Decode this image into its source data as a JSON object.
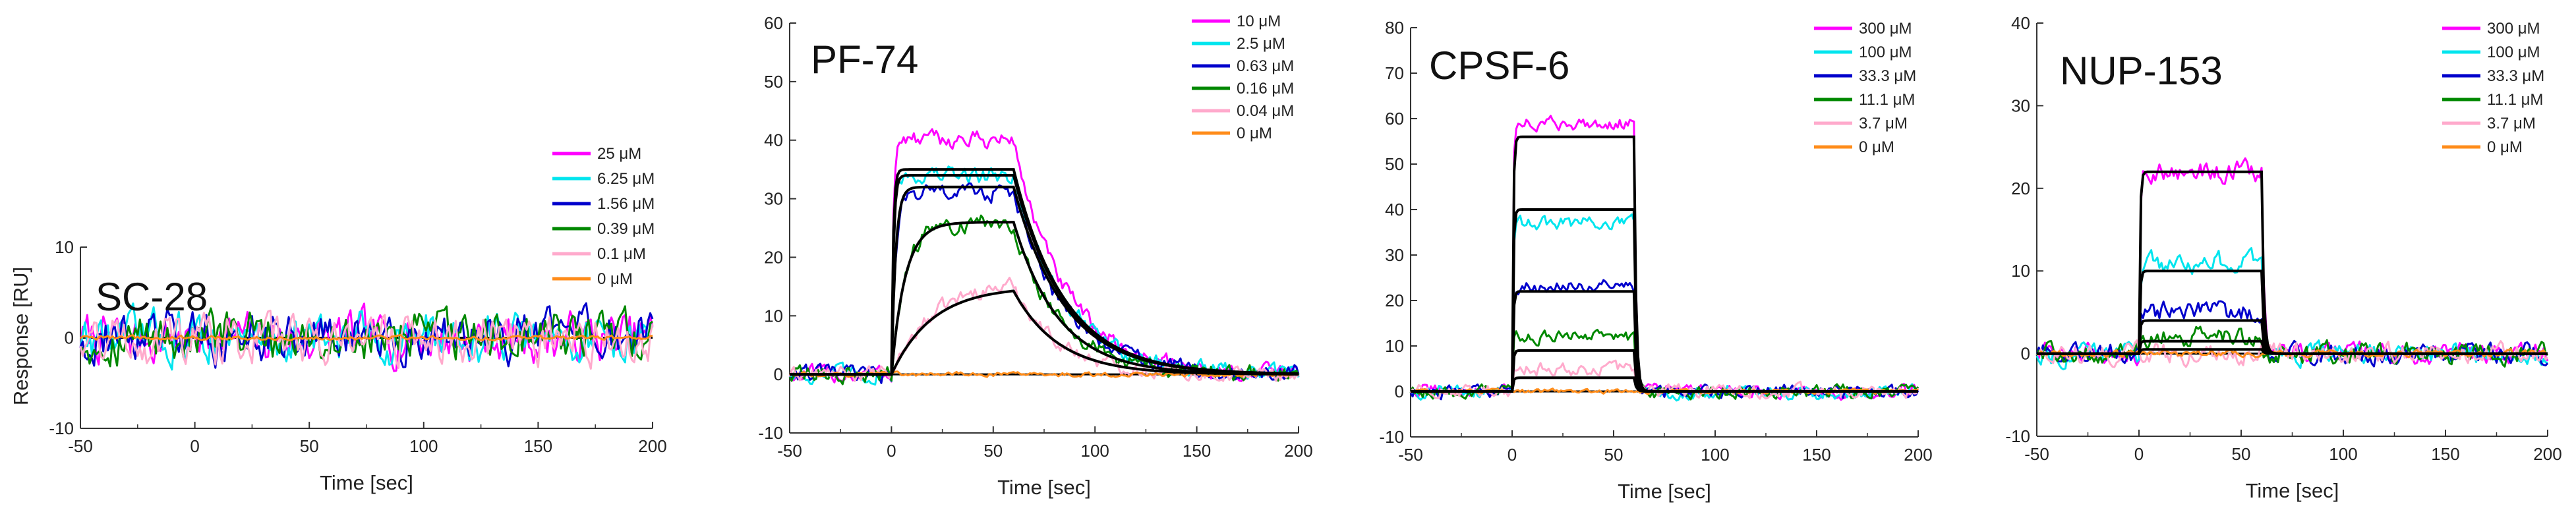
{
  "figure": {
    "y_axis_label": "Response [RU]",
    "x_axis_label": "Time [sec]"
  },
  "chart_data": [
    {
      "type": "line",
      "title": "SC-28",
      "xlabel": "Time [sec]",
      "ylabel": "Response [RU]",
      "xlim": [
        -50,
        200
      ],
      "ylim": [
        -10,
        10
      ],
      "x_ticks": [
        -50,
        0,
        50,
        100,
        150,
        200
      ],
      "y_ticks": [
        -10,
        0,
        10
      ],
      "legend_position": "top-right",
      "series": [
        {
          "name": "25 μM",
          "color": "#ff00ff",
          "fit_response": 0,
          "noise": 2.2
        },
        {
          "name": "6.25 μM",
          "color": "#00e5ee",
          "fit_response": 0,
          "noise": 2.2
        },
        {
          "name": "1.56 μM",
          "color": "#0000cc",
          "fit_response": 0,
          "noise": 2.2
        },
        {
          "name": "0.39 μM",
          "color": "#008800",
          "fit_response": 0,
          "noise": 2.2
        },
        {
          "name": "0.1 μM",
          "color": "#ffaacc",
          "fit_response": 0,
          "noise": 2.2
        },
        {
          "name": "0 μM",
          "color": "#ff8c1a",
          "fit_response": 0,
          "noise": 0.2
        }
      ],
      "injection_start": 0,
      "injection_end": 60,
      "show_fits": false
    },
    {
      "type": "line",
      "title": "PF-74",
      "xlabel": "Time [sec]",
      "ylabel": "",
      "xlim": [
        -50,
        200
      ],
      "ylim": [
        -10,
        60
      ],
      "x_ticks": [
        -50,
        0,
        50,
        100,
        150,
        200
      ],
      "y_ticks": [
        -10,
        0,
        10,
        20,
        30,
        40,
        50,
        60
      ],
      "legend_position": "top-right",
      "series": [
        {
          "name": "10 μM",
          "color": "#ff00ff",
          "data_response": 40,
          "fit_response": 35,
          "noise": 1.2,
          "ka": 1.2,
          "kd": 0.04
        },
        {
          "name": "2.5 μM",
          "color": "#00e5ee",
          "data_response": 34,
          "fit_response": 34,
          "noise": 1.2,
          "ka": 1.0,
          "kd": 0.04
        },
        {
          "name": "0.63 μM",
          "color": "#0000cc",
          "data_response": 31,
          "fit_response": 32,
          "noise": 1.2,
          "ka": 0.5,
          "kd": 0.04
        },
        {
          "name": "0.16 μM",
          "color": "#008800",
          "data_response": 26,
          "fit_response": 26,
          "noise": 1.2,
          "ka": 0.15,
          "kd": 0.045
        },
        {
          "name": "0.04 μM",
          "color": "#ffaacc",
          "data_response": 16,
          "fit_response": 15,
          "noise": 1.0,
          "ka": 0.05,
          "kd": 0.045
        },
        {
          "name": "0 μM",
          "color": "#ff8c1a",
          "data_response": 0,
          "fit_response": 0,
          "noise": 0.3,
          "ka": 1,
          "kd": 0.04
        }
      ],
      "injection_start": 0,
      "injection_end": 60,
      "show_fits": true
    },
    {
      "type": "line",
      "title": "CPSF-6",
      "xlabel": "Time [sec]",
      "ylabel": "",
      "xlim": [
        -50,
        200
      ],
      "ylim": [
        -10,
        80
      ],
      "x_ticks": [
        -50,
        0,
        50,
        100,
        150,
        200
      ],
      "y_ticks": [
        -10,
        0,
        10,
        20,
        30,
        40,
        50,
        60,
        70,
        80
      ],
      "legend_position": "top-right",
      "series": [
        {
          "name": "300 μM",
          "color": "#ff00ff",
          "data_response": 59,
          "fit_response": 56,
          "noise": 1.2,
          "ka": 2,
          "kd": 1
        },
        {
          "name": "100 μM",
          "color": "#00e5ee",
          "data_response": 37,
          "fit_response": 40,
          "noise": 1.2,
          "ka": 2,
          "kd": 1
        },
        {
          "name": "33.3 μM",
          "color": "#0000cc",
          "data_response": 23,
          "fit_response": 22,
          "noise": 1.2,
          "ka": 2,
          "kd": 1
        },
        {
          "name": "11.1 μM",
          "color": "#008800",
          "data_response": 12,
          "fit_response": 9,
          "noise": 1.2,
          "ka": 2,
          "kd": 1
        },
        {
          "name": "3.7 μM",
          "color": "#ffaacc",
          "data_response": 5,
          "fit_response": 3,
          "noise": 1.2,
          "ka": 2,
          "kd": 1
        },
        {
          "name": "0 μM",
          "color": "#ff8c1a",
          "data_response": 0,
          "fit_response": 0,
          "noise": 0.4,
          "ka": 2,
          "kd": 1
        }
      ],
      "injection_start": 0,
      "injection_end": 60,
      "show_fits": true
    },
    {
      "type": "line",
      "title": "NUP-153",
      "xlabel": "Time [sec]",
      "ylabel": "",
      "xlim": [
        -50,
        200
      ],
      "ylim": [
        -10,
        40
      ],
      "x_ticks": [
        -50,
        0,
        50,
        100,
        150,
        200
      ],
      "y_ticks": [
        -10,
        0,
        10,
        20,
        30,
        40
      ],
      "legend_position": "top-right",
      "series": [
        {
          "name": "300 μM",
          "color": "#ff00ff",
          "data_response": 22,
          "fit_response": 22,
          "noise": 1.0,
          "ka": 2,
          "kd": 1
        },
        {
          "name": "100 μM",
          "color": "#00e5ee",
          "data_response": 11,
          "fit_response": 10,
          "noise": 1.0,
          "ka": 2,
          "kd": 1
        },
        {
          "name": "33.3 μM",
          "color": "#0000cc",
          "data_response": 5,
          "fit_response": 4,
          "noise": 1.0,
          "ka": 2,
          "kd": 1
        },
        {
          "name": "11.1 μM",
          "color": "#008800",
          "data_response": 2,
          "fit_response": 1.5,
          "noise": 1.0,
          "ka": 2,
          "kd": 1
        },
        {
          "name": "3.7 μM",
          "color": "#ffaacc",
          "data_response": 0,
          "fit_response": 0.5,
          "noise": 1.0,
          "ka": 2,
          "kd": 1
        },
        {
          "name": "0 μM",
          "color": "#ff8c1a",
          "data_response": 0,
          "fit_response": 0,
          "noise": 0.3,
          "ka": 2,
          "kd": 1
        }
      ],
      "injection_start": 0,
      "injection_end": 60,
      "show_fits": true
    }
  ]
}
